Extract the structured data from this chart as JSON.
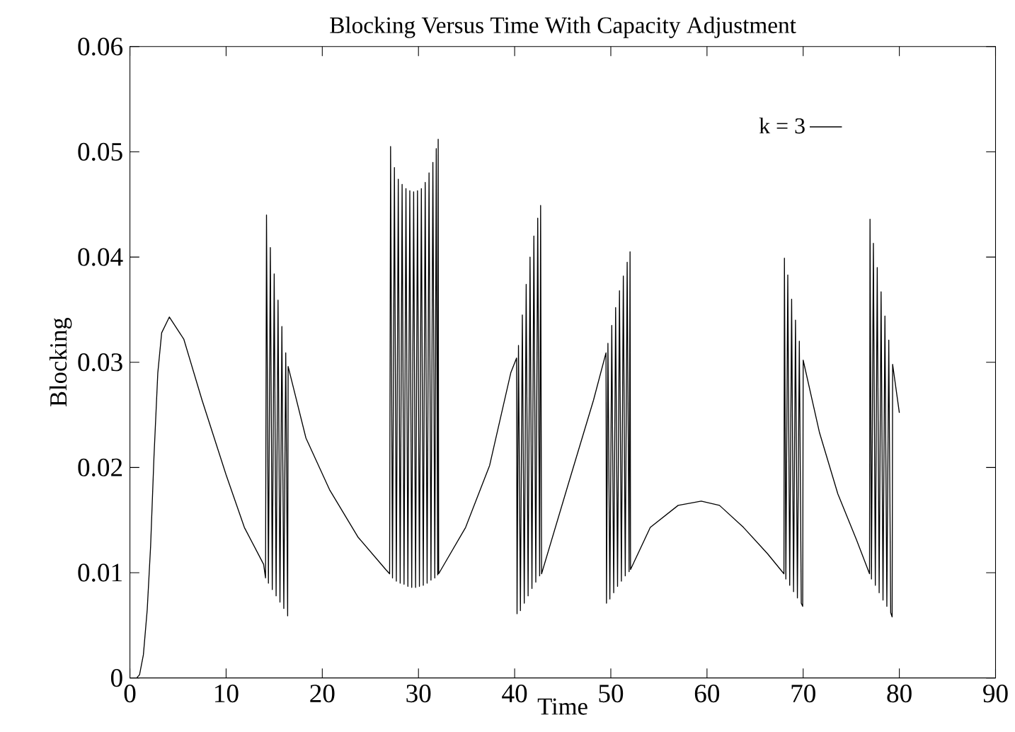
{
  "chart_data": {
    "type": "line",
    "title": "Blocking Versus Time With Capacity Adjustment",
    "xlabel": "Time",
    "ylabel": "Blocking",
    "xlim": [
      0,
      90
    ],
    "xticks": [
      0,
      10,
      20,
      30,
      40,
      50,
      60,
      70,
      80,
      90
    ],
    "ylim": [
      0,
      0.06
    ],
    "yticks": [
      0,
      0.01,
      0.02,
      0.03,
      0.04,
      0.05,
      0.06
    ],
    "grid": false,
    "legend": "top right",
    "marker": "none",
    "line_style": "solid",
    "series": [
      {
        "name": "k = 3",
        "color": "#000000",
        "x": [
          0.7,
          1.0,
          1.4,
          1.8,
          2.15,
          2.5,
          2.9,
          3.3,
          4.1,
          5.6,
          7.5,
          10.0,
          11.9,
          13.9,
          14.1,
          14.2,
          14.4,
          14.6,
          14.8,
          15.0,
          15.2,
          15.4,
          15.6,
          15.8,
          16.0,
          16.2,
          16.4,
          16.45,
          18.3,
          20.75,
          23.7,
          26.6,
          27.0,
          27.1,
          27.3,
          27.5,
          27.7,
          27.9,
          28.1,
          28.3,
          28.5,
          28.7,
          28.9,
          29.1,
          29.3,
          29.5,
          29.7,
          29.9,
          30.1,
          30.3,
          30.5,
          30.7,
          30.9,
          31.1,
          31.3,
          31.5,
          31.7,
          31.85,
          32.0,
          32.05,
          32.1,
          34.9,
          37.4,
          39.6,
          40.2,
          40.25,
          40.4,
          40.6,
          40.8,
          41.0,
          41.2,
          41.4,
          41.6,
          41.8,
          42.0,
          42.2,
          42.4,
          42.6,
          42.7,
          42.8,
          45.7,
          48.2,
          49.5,
          49.55,
          49.7,
          49.9,
          50.1,
          50.3,
          50.5,
          50.7,
          50.9,
          51.1,
          51.3,
          51.5,
          51.7,
          51.9,
          52.0,
          52.05,
          54.1,
          57.0,
          59.4,
          61.3,
          63.8,
          66.3,
          68.0,
          68.05,
          68.2,
          68.4,
          68.6,
          68.8,
          69.0,
          69.2,
          69.4,
          69.6,
          69.8,
          69.95,
          70.0,
          71.7,
          73.6,
          75.6,
          76.9,
          76.95,
          77.1,
          77.3,
          77.5,
          77.7,
          77.9,
          78.1,
          78.3,
          78.5,
          78.7,
          78.9,
          79.1,
          79.25,
          79.3,
          80.0
        ],
        "values": [
          0,
          0.0003,
          0.0022,
          0.0065,
          0.0125,
          0.021,
          0.029,
          0.0328,
          0.0343,
          0.0322,
          0.0264,
          0.0193,
          0.0143,
          0.0108,
          0.0095,
          0.044,
          0.009,
          0.0409,
          0.0084,
          0.0384,
          0.0078,
          0.0359,
          0.0072,
          0.0334,
          0.0066,
          0.0309,
          0.0059,
          0.0296,
          0.0228,
          0.0179,
          0.0134,
          0.0103,
          0.0099,
          0.0505,
          0.0095,
          0.0485,
          0.0092,
          0.0474,
          0.009,
          0.0469,
          0.0089,
          0.0465,
          0.0087,
          0.0463,
          0.0086,
          0.0462,
          0.0086,
          0.0463,
          0.0087,
          0.0465,
          0.0088,
          0.0471,
          0.009,
          0.048,
          0.0093,
          0.049,
          0.0095,
          0.0503,
          0.0098,
          0.0512,
          0.0099,
          0.0143,
          0.0202,
          0.029,
          0.0304,
          0.0061,
          0.0316,
          0.0064,
          0.0345,
          0.0071,
          0.0374,
          0.0078,
          0.04,
          0.0085,
          0.042,
          0.0091,
          0.0437,
          0.0097,
          0.0449,
          0.0099,
          0.0188,
          0.0264,
          0.0309,
          0.0071,
          0.0318,
          0.0075,
          0.0335,
          0.0081,
          0.0352,
          0.0087,
          0.0368,
          0.0092,
          0.0382,
          0.0097,
          0.0395,
          0.0101,
          0.0405,
          0.0103,
          0.0143,
          0.0164,
          0.0168,
          0.0164,
          0.0143,
          0.0118,
          0.0099,
          0.0399,
          0.0094,
          0.0383,
          0.0088,
          0.036,
          0.0082,
          0.034,
          0.0076,
          0.032,
          0.0071,
          0.0068,
          0.0302,
          0.0233,
          0.0175,
          0.013,
          0.0099,
          0.0436,
          0.0094,
          0.0413,
          0.0088,
          0.039,
          0.0081,
          0.0367,
          0.0074,
          0.0344,
          0.0068,
          0.0321,
          0.0062,
          0.0058,
          0.0298,
          0.0252
        ]
      }
    ]
  }
}
